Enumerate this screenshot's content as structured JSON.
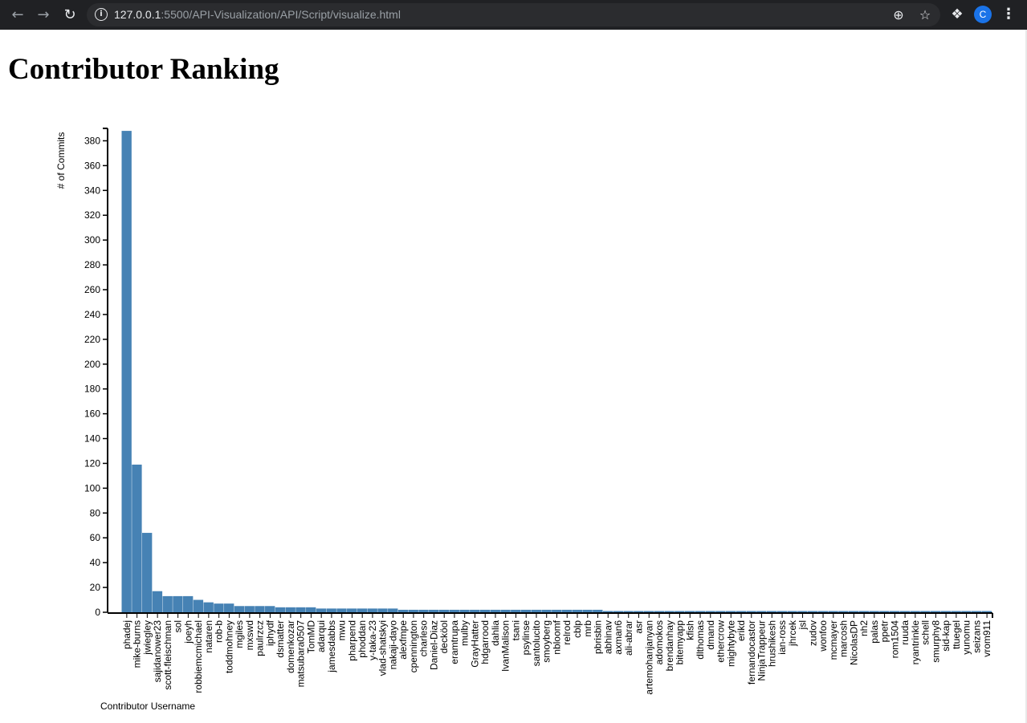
{
  "browser": {
    "back_icon": "←",
    "forward_icon": "→",
    "reload_icon": "↻",
    "info_icon": "i",
    "url_host": "127.0.0.1",
    "url_rest": ":5500/API-Visualization/API/Script/visualize.html",
    "zoom_icon": "⊕",
    "star_icon": "☆",
    "extensions_icon": "❖",
    "profile_initial": "C",
    "menu_icon": "⋮",
    "profile_color": "#1a73e8"
  },
  "page": {
    "title": "Contributor Ranking"
  },
  "chart_data": {
    "type": "bar",
    "title": "Contributor Ranking",
    "xlabel": "Contributor Username",
    "ylabel": "# of Commits",
    "ylim": [
      0,
      390
    ],
    "yticks": [
      0,
      20,
      40,
      60,
      80,
      100,
      120,
      140,
      160,
      180,
      200,
      220,
      240,
      260,
      280,
      300,
      320,
      340,
      360,
      380
    ],
    "bar_color": "#4682b4",
    "grid": false,
    "categories": [
      "phadej",
      "mike-burns",
      "jwiegley",
      "sajidanower23",
      "scott-fleischman",
      "sol",
      "joeyh",
      "robbiemcmichael",
      "nataren",
      "rob-b",
      "toddmohney",
      "mgiles",
      "mxswd",
      "paulrzcz",
      "iphydf",
      "dsmatter",
      "domenkozar",
      "matsubara0507",
      "TomMD",
      "adarqui",
      "jamesdabbs",
      "mwu",
      "pharpend",
      "phoddan",
      "y-taka-23",
      "vlad-shatskyi",
      "nakaji-dayo",
      "alexfmpe",
      "cpennington",
      "charleso",
      "Daniel-Diaz",
      "decköol",
      "eramtrupa",
      "mulby",
      "GrayHatter",
      "hdgarrood",
      "dahlia",
      "IvanMalison",
      "tsani",
      "psylinse",
      "santolucito",
      "smoyberg",
      "nbloomf",
      "relrod",
      "cblp",
      "mrb",
      "pbrisbin",
      "abhinav",
      "axman6",
      "ali-abrar",
      "asr",
      "artemohanjanyan",
      "adomokos",
      "brendanhay",
      "bitemyapp",
      "kfish",
      "dlthomas",
      "dmand",
      "ethercrow",
      "mightybyte",
      "erikd",
      "fernandocastor",
      "NinjaTrappeur",
      "hrushikesh",
      "ian-ross",
      "jhrcek",
      "jsl",
      "zudov",
      "wonfoo",
      "mcmayer",
      "marcosh",
      "NicolasDP",
      "nh2",
      "palas",
      "ppetr",
      "rom1504",
      "ruuda",
      "ryantrinkle",
      "schell",
      "smurphy8",
      "sid-kap",
      "ttuegel",
      "yunomu",
      "seizans",
      "vrom911"
    ],
    "values": [
      388,
      119,
      64,
      17,
      13,
      13,
      13,
      10,
      8,
      7,
      7,
      5,
      5,
      5,
      5,
      4,
      4,
      4,
      4,
      3,
      3,
      3,
      3,
      3,
      3,
      3,
      3,
      2,
      2,
      2,
      2,
      2,
      2,
      2,
      2,
      2,
      2,
      2,
      2,
      2,
      2,
      2,
      2,
      2,
      2,
      2,
      2,
      1,
      1,
      1,
      1,
      1,
      1,
      1,
      1,
      1,
      1,
      1,
      1,
      1,
      1,
      1,
      1,
      1,
      1,
      1,
      1,
      1,
      1,
      1,
      1,
      1,
      1,
      1,
      1,
      1,
      1,
      1,
      1,
      1,
      1,
      1,
      1,
      1,
      1
    ]
  }
}
